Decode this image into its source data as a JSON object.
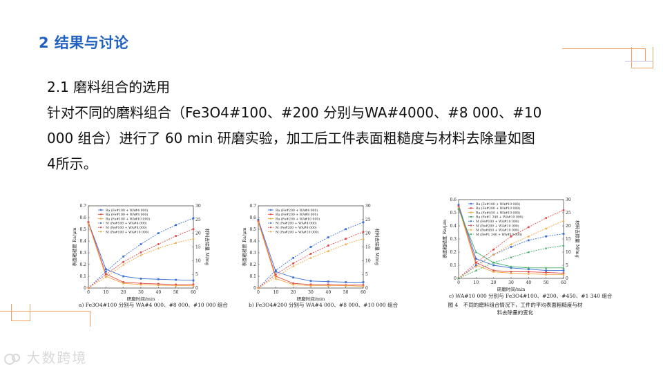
{
  "heading": "2 结果与讨论",
  "subheading": "2.1 磨料组合的选用",
  "paragraph_lines": [
    "针对不同的磨料组合（Fe3O4#100、#200 分别与WA#4000、#8 000、#10",
    "000 组合）进行了 60 min 研磨实验，加工后工件表面粗糙度与材料去除量如图",
    "4所示。"
  ],
  "watermark": "大数跨境",
  "colors": {
    "heading": "#1f5fbf",
    "accent_lines": "#f0a060",
    "blue": "#3b6fd8",
    "red": "#e04848",
    "orange": "#f2a640",
    "green": "#3caa64"
  },
  "figure_caption": "图 4　不同的磨料组合情况下，工件的平均表面粗糙度与材料去除量的变化",
  "chart_data": [
    {
      "type": "line",
      "caption": "a) Fe3O4#100 分别与 WA#4 000、#8 000、#10 000 组合",
      "xlabel": "研磨时间/min",
      "ylabel": "表面粗糙度 Ra/μm",
      "y2label": "材料去除量 M/mg",
      "x": [
        0,
        10,
        20,
        30,
        40,
        50,
        60
      ],
      "xlim": [
        0,
        60
      ],
      "ylim": [
        0,
        0.7
      ],
      "y2lim": [
        0,
        30
      ],
      "xticks": [
        "0",
        "10",
        "20",
        "30",
        "40",
        "50",
        "60"
      ],
      "yticks": [
        "0",
        "0.1",
        "0.2",
        "0.3",
        "0.4",
        "0.5",
        "0.6",
        "0.7"
      ],
      "y2ticks": [
        "0",
        "5",
        "10",
        "15",
        "20",
        "25",
        "30"
      ],
      "legend_position": "top-left",
      "series": [
        {
          "name": "Ra (Fe#100 + WA#4 000)",
          "axis": "left",
          "color": "#3b6fd8",
          "dash": false,
          "marker": "square",
          "values": [
            0.56,
            0.16,
            0.1,
            0.08,
            0.075,
            0.07,
            0.065
          ]
        },
        {
          "name": "Ra (Fe#100 + WA#8 000)",
          "axis": "left",
          "color": "#e04848",
          "dash": false,
          "marker": "circle",
          "values": [
            0.56,
            0.12,
            0.05,
            0.04,
            0.035,
            0.03,
            0.03
          ]
        },
        {
          "name": "Ra (Fe#100 + WA#10 000)",
          "axis": "left",
          "color": "#f2a640",
          "dash": false,
          "marker": "triangle",
          "values": [
            0.55,
            0.1,
            0.04,
            0.03,
            0.025,
            0.02,
            0.02
          ]
        },
        {
          "name": "M (Fe#100 + WA#4 000)",
          "axis": "right",
          "color": "#3b6fd8",
          "dash": true,
          "marker": "square",
          "values": [
            0,
            6,
            11.5,
            16,
            20,
            23,
            25.5
          ]
        },
        {
          "name": "M (Fe#100 + WA#8 000)",
          "axis": "right",
          "color": "#e04848",
          "dash": true,
          "marker": "circle",
          "values": [
            0,
            5,
            9.5,
            13,
            16,
            19,
            21.5
          ]
        },
        {
          "name": "M (Fe#100 + WA#10 000)",
          "axis": "right",
          "color": "#f2a640",
          "dash": true,
          "marker": "triangle",
          "values": [
            0,
            4,
            8.5,
            12,
            14.5,
            16.5,
            18
          ]
        }
      ]
    },
    {
      "type": "line",
      "caption": "b) Fe3O4#200 分别与 WA#4 000、#8 000、#10 000 组合",
      "xlabel": "研磨时间/min",
      "ylabel": "表面粗糙度 Ra/μm",
      "y2label": "材料去除量 M/mg",
      "x": [
        0,
        10,
        20,
        30,
        40,
        50,
        60
      ],
      "xlim": [
        0,
        60
      ],
      "ylim": [
        0,
        0.7
      ],
      "y2lim": [
        0,
        30
      ],
      "xticks": [
        "0",
        "10",
        "20",
        "30",
        "40",
        "50",
        "60"
      ],
      "yticks": [
        "0",
        "0.1",
        "0.2",
        "0.3",
        "0.4",
        "0.5",
        "0.6",
        "0.7"
      ],
      "y2ticks": [
        "0",
        "5",
        "10",
        "15",
        "20",
        "25",
        "30"
      ],
      "legend_position": "top-left",
      "series": [
        {
          "name": "Ra (Fe#200 + WA#4 000)",
          "axis": "left",
          "color": "#3b6fd8",
          "dash": false,
          "marker": "square",
          "values": [
            0.58,
            0.14,
            0.09,
            0.06,
            0.055,
            0.05,
            0.05
          ]
        },
        {
          "name": "Ra (Fe#200 + WA#8 000)",
          "axis": "left",
          "color": "#e04848",
          "dash": false,
          "marker": "circle",
          "values": [
            0.57,
            0.1,
            0.04,
            0.03,
            0.03,
            0.025,
            0.025
          ]
        },
        {
          "name": "Ra (Fe#200 + WA#10 000)",
          "axis": "left",
          "color": "#f2a640",
          "dash": false,
          "marker": "triangle",
          "values": [
            0.56,
            0.08,
            0.03,
            0.02,
            0.02,
            0.02,
            0.015
          ]
        },
        {
          "name": "M (Fe#200 + WA#4 000)",
          "axis": "right",
          "color": "#3b6fd8",
          "dash": true,
          "marker": "square",
          "values": [
            0,
            6.5,
            11,
            15,
            18.5,
            21.5,
            24
          ]
        },
        {
          "name": "M (Fe#200 + WA#8 000)",
          "axis": "right",
          "color": "#e04848",
          "dash": true,
          "marker": "circle",
          "values": [
            0,
            5,
            9,
            12.5,
            15.5,
            18,
            20.5
          ]
        },
        {
          "name": "M (Fe#200 + WA#10 000)",
          "axis": "right",
          "color": "#f2a640",
          "dash": true,
          "marker": "triangle",
          "values": [
            0,
            4,
            8,
            11,
            13.5,
            16,
            18
          ]
        }
      ]
    },
    {
      "type": "line",
      "caption": "c) WA#10 000 分别与 Fe3O4#100、#200、#450、#1 340 组合",
      "xlabel": "研磨时间/min",
      "ylabel": "表面粗糙度 Ra/μm",
      "y2label": "材料去除量 M/mg",
      "x": [
        0,
        10,
        20,
        30,
        40,
        50,
        60
      ],
      "xlim": [
        0,
        60
      ],
      "ylim": [
        0,
        0.6
      ],
      "y2lim": [
        0,
        30
      ],
      "xticks": [
        "0",
        "10",
        "20",
        "30",
        "40",
        "50",
        "60"
      ],
      "yticks": [
        "0",
        "0.1",
        "0.2",
        "0.3",
        "0.4",
        "0.5",
        "0.6"
      ],
      "y2ticks": [
        "0",
        "5",
        "10",
        "15",
        "20",
        "25",
        "30"
      ],
      "legend_position": "top-left",
      "series": [
        {
          "name": "Ra (Fe#100 + WA#10 000)",
          "axis": "left",
          "color": "#3b6fd8",
          "dash": false,
          "marker": "square",
          "values": [
            0.56,
            0.15,
            0.1,
            0.08,
            0.07,
            0.06,
            0.06
          ]
        },
        {
          "name": "Ra (Fe#200 + WA#10 000)",
          "axis": "left",
          "color": "#e04848",
          "dash": false,
          "marker": "circle",
          "values": [
            0.55,
            0.12,
            0.06,
            0.05,
            0.05,
            0.045,
            0.04
          ]
        },
        {
          "name": "Ra (Fe#450 + WA#10 000)",
          "axis": "left",
          "color": "#f2a640",
          "dash": false,
          "marker": "triangle",
          "values": [
            0.54,
            0.1,
            0.05,
            0.04,
            0.035,
            0.03,
            0.03
          ]
        },
        {
          "name": "Ra (Fe#1 340 + WA#10 000)",
          "axis": "left",
          "color": "#3caa64",
          "dash": false,
          "marker": "triangle",
          "values": [
            0.53,
            0.2,
            0.12,
            0.09,
            0.08,
            0.08,
            0.08
          ]
        },
        {
          "name": "M (Fe#100 + WA#10 000)",
          "axis": "right",
          "color": "#3b6fd8",
          "dash": true,
          "marker": "square",
          "values": [
            0,
            5,
            9,
            12,
            14.5,
            16,
            17
          ]
        },
        {
          "name": "M (Fe#200 + WA#10 000)",
          "axis": "right",
          "color": "#e04848",
          "dash": true,
          "marker": "circle",
          "values": [
            0,
            6,
            11,
            16,
            19.5,
            23,
            26
          ]
        },
        {
          "name": "M (Fe#450 + WA#10 000)",
          "axis": "right",
          "color": "#f2a640",
          "dash": true,
          "marker": "triangle",
          "values": [
            0,
            4.5,
            9,
            13,
            16,
            19,
            22
          ]
        },
        {
          "name": "M (Fe#1 340 + WA#10 000)",
          "axis": "right",
          "color": "#3caa64",
          "dash": true,
          "marker": "triangle",
          "values": [
            0,
            3,
            6,
            8,
            10,
            11.5,
            12.5
          ]
        }
      ]
    }
  ]
}
